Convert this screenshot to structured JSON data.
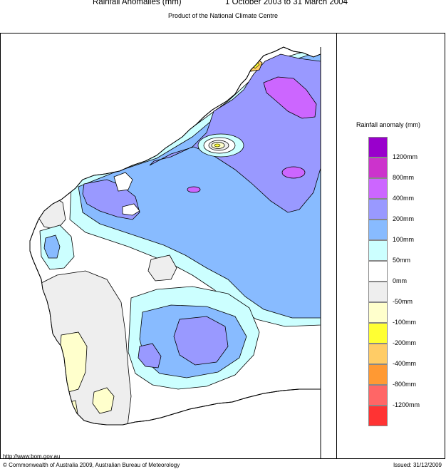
{
  "header": {
    "title_left": "Rainfall Anomalies (mm)",
    "title_right": "1 October 2003 to 31 March 2004",
    "subtitle": "Product of the National Climate Centre"
  },
  "legend": {
    "title": "Rainfall anomaly (mm)",
    "colors": [
      "#9900cc",
      "#cc33cc",
      "#cc66ff",
      "#9999ff",
      "#88bbff",
      "#ccffff",
      "#ffffff",
      "#eeeeee",
      "#ffffcc",
      "#ffff33",
      "#ffcc66",
      "#ff9933",
      "#ff6666",
      "#ff3333"
    ],
    "labels": [
      "1200mm",
      "800mm",
      "400mm",
      "200mm",
      "100mm",
      "50mm",
      "0mm",
      "-50mm",
      "-100mm",
      "-200mm",
      "-400mm",
      "-800mm",
      "-1200mm"
    ]
  },
  "footer": {
    "url": "http://www.bom.gov.au",
    "copyright": "© Commonwealth of Australia 2009, Australian Bureau of Meteorology",
    "issued": "Issued: 31/12/2009"
  }
}
